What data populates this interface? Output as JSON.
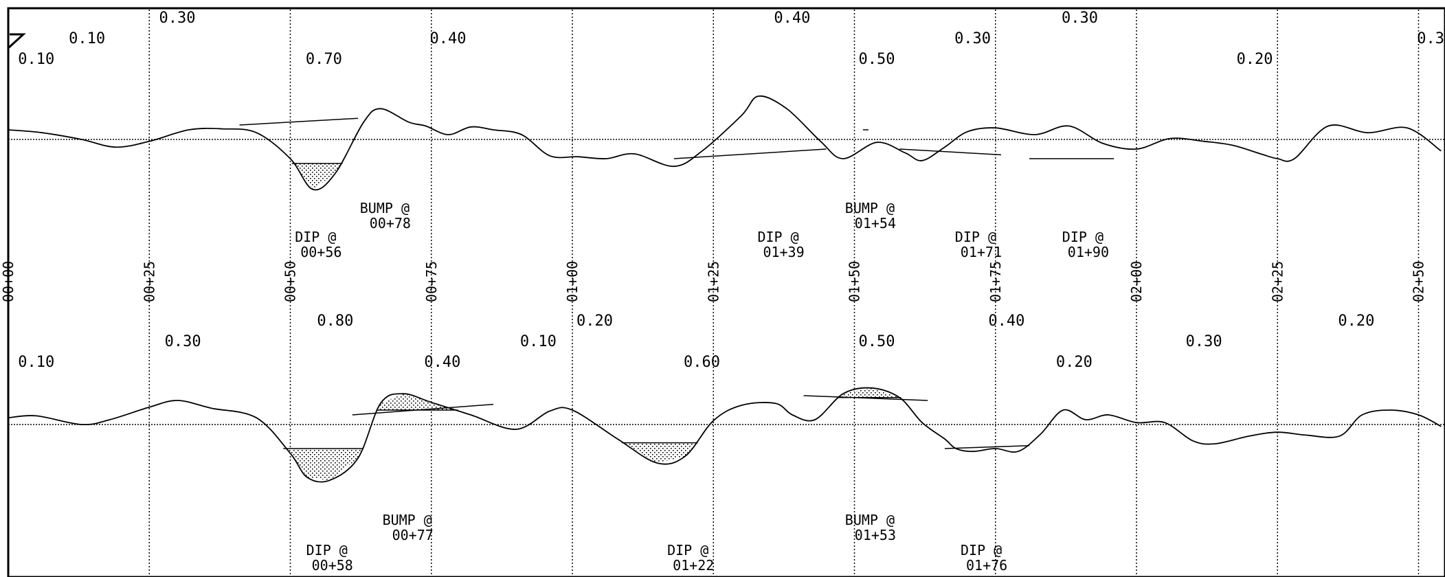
{
  "chart_data": {
    "type": "line",
    "title": "",
    "xlabel": "",
    "ylabel": "",
    "station_labels": [
      "00+00",
      "00+25",
      "00+50",
      "00+75",
      "01+00",
      "01+25",
      "01+50",
      "01+75",
      "02+00",
      "02+25",
      "02+50"
    ],
    "profiles": [
      {
        "baseline": 0,
        "curve": [
          [
            0,
            0.1
          ],
          [
            6,
            0.07
          ],
          [
            13,
            0
          ],
          [
            19,
            -0.08
          ],
          [
            25,
            -0.02
          ],
          [
            32,
            0.1
          ],
          [
            38,
            0.11
          ],
          [
            44,
            0.07
          ],
          [
            50,
            -0.2
          ],
          [
            54,
            -0.52
          ],
          [
            58,
            -0.35
          ],
          [
            63,
            0.18
          ],
          [
            66,
            0.32
          ],
          [
            71,
            0.18
          ],
          [
            74,
            0.14
          ],
          [
            78,
            0.05
          ],
          [
            82,
            0.13
          ],
          [
            86,
            0.1
          ],
          [
            91,
            0.05
          ],
          [
            96,
            -0.17
          ],
          [
            101,
            -0.18
          ],
          [
            106,
            -0.2
          ],
          [
            111,
            -0.15
          ],
          [
            118,
            -0.28
          ],
          [
            123,
            -0.12
          ],
          [
            130,
            0.25
          ],
          [
            133,
            0.45
          ],
          [
            138,
            0.32
          ],
          [
            144,
            -0.02
          ],
          [
            148,
            -0.2
          ],
          [
            154,
            -0.03
          ],
          [
            159,
            -0.14
          ],
          [
            162,
            -0.22
          ],
          [
            166,
            -0.08
          ],
          [
            170,
            0.08
          ],
          [
            175,
            0.12
          ],
          [
            182,
            0.05
          ],
          [
            188,
            0.14
          ],
          [
            194,
            -0.04
          ],
          [
            200,
            -0.1
          ],
          [
            206,
            0.01
          ],
          [
            212,
            -0.02
          ],
          [
            217,
            -0.06
          ],
          [
            222,
            -0.15
          ],
          [
            225,
            -0.2
          ],
          [
            228,
            -0.2
          ],
          [
            234,
            0.14
          ],
          [
            241,
            0.07
          ],
          [
            248,
            0.12
          ],
          [
            254,
            -0.12
          ]
        ],
        "events": [
          {
            "label": "BUMP @",
            "station": "00+78",
            "x": 66,
            "y": 0.32,
            "shade": "none",
            "line": [
              [
                41,
                0.15
              ],
              [
                62,
                0.22
              ]
            ]
          },
          {
            "label": "DIP @",
            "station": "00+56",
            "x": 54,
            "y": -0.52,
            "shade": "below",
            "cut": -0.25
          },
          {
            "label": "DIP @",
            "station": "01+39",
            "x": 136,
            "y": -0.28,
            "shade": "below",
            "line": [
              [
                118,
                -0.2
              ],
              [
                145,
                -0.1
              ]
            ]
          },
          {
            "label": "BUMP @",
            "station": "01+54",
            "x": 152,
            "y": 0.45,
            "shade": "above",
            "cut": 0.1
          },
          {
            "label": "DIP @",
            "station": "01+71",
            "x": 171,
            "y": -0.2,
            "shade": "none",
            "line": [
              [
                158,
                -0.1
              ],
              [
                176,
                -0.16
              ]
            ]
          },
          {
            "label": "DIP @",
            "station": "01+90",
            "x": 190,
            "y": -0.22,
            "shade": "none",
            "line": [
              [
                181,
                -0.2
              ],
              [
                196,
                -0.2
              ]
            ]
          }
        ],
        "value_labels": [
          {
            "text": "0.10",
            "x": 1,
            "row": 3
          },
          {
            "text": "0.10",
            "x": 10,
            "row": 2
          },
          {
            "text": "0.30",
            "x": 26,
            "row": 1
          },
          {
            "text": "0.70",
            "x": 52,
            "row": 3
          },
          {
            "text": "0.40",
            "x": 74,
            "row": 2
          },
          {
            "text": "0.40",
            "x": 135,
            "row": 1
          },
          {
            "text": "0.50",
            "x": 150,
            "row": 3
          },
          {
            "text": "0.30",
            "x": 167,
            "row": 2
          },
          {
            "text": "0.30",
            "x": 186,
            "row": 1
          },
          {
            "text": "0.20",
            "x": 217,
            "row": 3
          },
          {
            "text": "0.3",
            "x": 249,
            "row": 2
          }
        ]
      },
      {
        "baseline": 0,
        "curve": [
          [
            0,
            0.07
          ],
          [
            5,
            0.09
          ],
          [
            13,
            0
          ],
          [
            18,
            0.05
          ],
          [
            25,
            0.18
          ],
          [
            30,
            0.25
          ],
          [
            36,
            0.17
          ],
          [
            44,
            0.07
          ],
          [
            50,
            -0.3
          ],
          [
            53,
            -0.55
          ],
          [
            57,
            -0.58
          ],
          [
            62,
            -0.35
          ],
          [
            66,
            0.22
          ],
          [
            70,
            0.32
          ],
          [
            75,
            0.23
          ],
          [
            82,
            0.1
          ],
          [
            90,
            -0.05
          ],
          [
            96,
            0.14
          ],
          [
            100,
            0.15
          ],
          [
            108,
            -0.15
          ],
          [
            115,
            -0.4
          ],
          [
            120,
            -0.33
          ],
          [
            125,
            0.04
          ],
          [
            130,
            0.2
          ],
          [
            136,
            0.22
          ],
          [
            139,
            0.1
          ],
          [
            143,
            0.05
          ],
          [
            148,
            0.32
          ],
          [
            153,
            0.38
          ],
          [
            158,
            0.28
          ],
          [
            162,
            0.02
          ],
          [
            166,
            -0.15
          ],
          [
            168,
            -0.25
          ],
          [
            171,
            -0.28
          ],
          [
            175,
            -0.25
          ],
          [
            179,
            -0.28
          ],
          [
            183,
            -0.1
          ],
          [
            187,
            0.15
          ],
          [
            191,
            0.05
          ],
          [
            195,
            0.1
          ],
          [
            200,
            0.02
          ],
          [
            205,
            0.02
          ],
          [
            210,
            -0.17
          ],
          [
            214,
            -0.2
          ],
          [
            220,
            -0.12
          ],
          [
            225,
            -0.08
          ],
          [
            230,
            -0.11
          ],
          [
            236,
            -0.12
          ],
          [
            240,
            0.1
          ],
          [
            245,
            0.15
          ],
          [
            250,
            0.1
          ],
          [
            254,
            -0.02
          ]
        ],
        "events": [
          {
            "label": "BUMP @",
            "station": "00+77",
            "x": 70,
            "y": 0.32,
            "shade": "above",
            "cut": 0.15,
            "line": [
              [
                61,
                0.1
              ],
              [
                86,
                0.21
              ]
            ]
          },
          {
            "label": "DIP @",
            "station": "00+58",
            "x": 56,
            "y": -0.58,
            "shade": "below",
            "cut": -0.25
          },
          {
            "label": "DIP @",
            "station": "01+22",
            "x": 120,
            "y": -0.4,
            "shade": "below",
            "cut": -0.19
          },
          {
            "label": "BUMP @",
            "station": "01+53",
            "x": 152,
            "y": 0.38,
            "shade": "above",
            "cut": 0.28,
            "line": [
              [
                141,
                0.3
              ],
              [
                163,
                0.25
              ]
            ]
          },
          {
            "label": "DIP @",
            "station": "01+76",
            "x": 172,
            "y": -0.28,
            "shade": "none",
            "line": [
              [
                166,
                -0.25
              ],
              [
                181,
                -0.22
              ]
            ]
          }
        ],
        "value_labels": [
          {
            "text": "0.10",
            "x": 1,
            "row": 3
          },
          {
            "text": "0.30",
            "x": 27,
            "row": 2
          },
          {
            "text": "0.80",
            "x": 54,
            "row": 1
          },
          {
            "text": "0.40",
            "x": 73,
            "row": 3
          },
          {
            "text": "0.10",
            "x": 90,
            "row": 2
          },
          {
            "text": "0.20",
            "x": 100,
            "row": 1
          },
          {
            "text": "0.60",
            "x": 119,
            "row": 3
          },
          {
            "text": "0.50",
            "x": 150,
            "row": 2
          },
          {
            "text": "0.40",
            "x": 173,
            "row": 1
          },
          {
            "text": "0.20",
            "x": 185,
            "row": 3
          },
          {
            "text": "0.30",
            "x": 208,
            "row": 2
          },
          {
            "text": "0.20",
            "x": 235,
            "row": 1
          }
        ]
      }
    ]
  }
}
